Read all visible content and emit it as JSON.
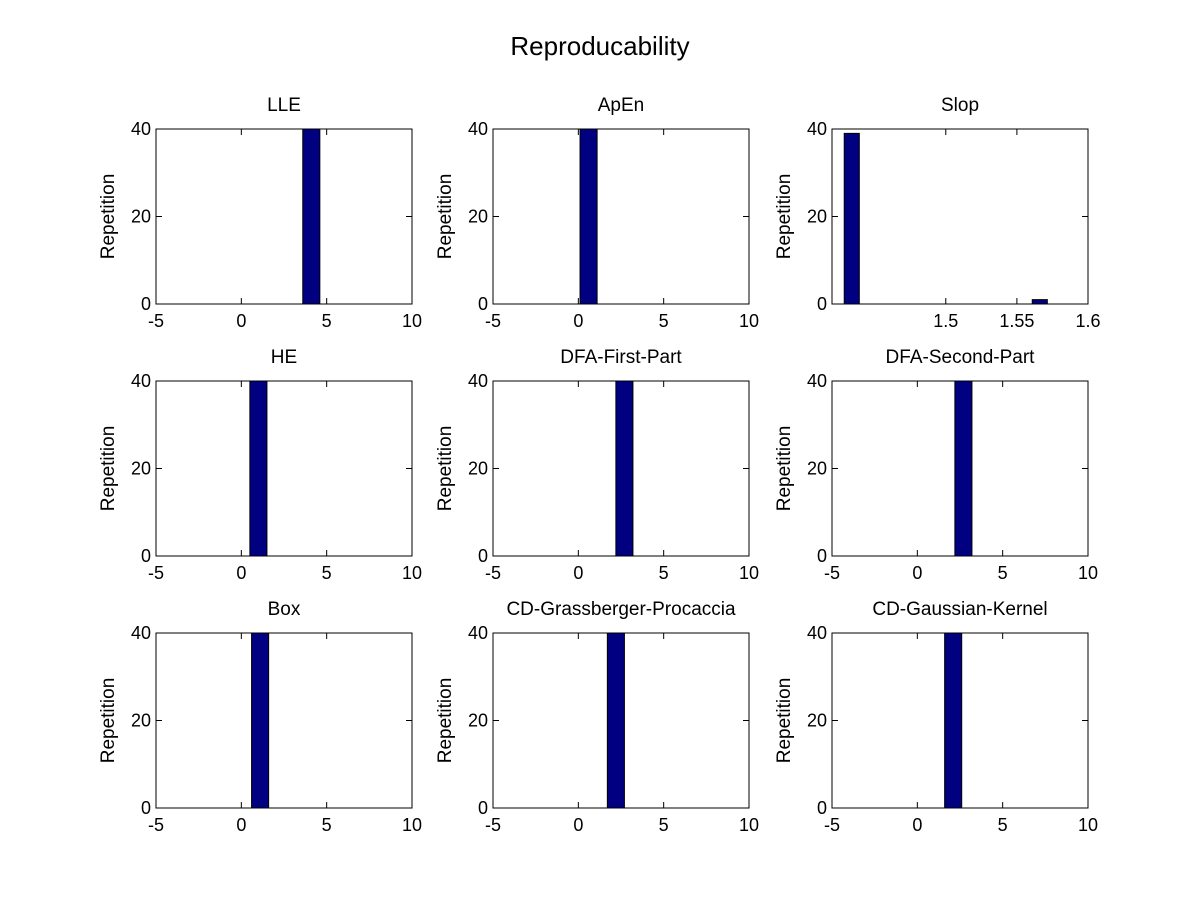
{
  "figure": {
    "title": "Reproducability",
    "bar_color": "#000080",
    "background": "#ffffff"
  },
  "chart_data": [
    {
      "type": "bar",
      "title": "LLE",
      "xlabel": "",
      "ylabel": "Repetition",
      "xlim": [
        -5,
        10
      ],
      "ylim": [
        0,
        40
      ],
      "xticks": [
        "-5",
        "0",
        "5",
        "10"
      ],
      "yticks": [
        "0",
        "20",
        "40"
      ],
      "x_values": [
        3.6,
        4.6
      ],
      "x": [
        4.1
      ],
      "values": [
        40
      ]
    },
    {
      "type": "bar",
      "title": "ApEn",
      "xlabel": "",
      "ylabel": "Repetition",
      "xlim": [
        -5,
        10
      ],
      "ylim": [
        0,
        40
      ],
      "xticks": [
        "-5",
        "0",
        "5",
        "10"
      ],
      "yticks": [
        "0",
        "20",
        "40"
      ],
      "x_values": [
        0.1,
        1.1
      ],
      "x": [
        0.6
      ],
      "values": [
        40
      ]
    },
    {
      "type": "bar",
      "title": "Slop",
      "xlabel": "",
      "ylabel": "Repetition",
      "xlim": [
        1.42,
        1.6
      ],
      "ylim": [
        0,
        40
      ],
      "xticks": [
        "1.5",
        "1.55",
        "1.6"
      ],
      "yticks": [
        "0",
        "20",
        "40"
      ],
      "x_values": [
        1.5,
        1.55,
        1.6
      ],
      "x": [
        1.4339,
        1.5661
      ],
      "bar_width": 0.0106,
      "values": [
        39,
        1
      ]
    },
    {
      "type": "bar",
      "title": "HE",
      "xlabel": "",
      "ylabel": "Repetition",
      "xlim": [
        -5,
        10
      ],
      "ylim": [
        0,
        40
      ],
      "xticks": [
        "-5",
        "0",
        "5",
        "10"
      ],
      "yticks": [
        "0",
        "20",
        "40"
      ],
      "x_values": [
        0.5,
        1.5
      ],
      "x": [
        1.0
      ],
      "values": [
        40
      ]
    },
    {
      "type": "bar",
      "title": "DFA-First-Part",
      "xlabel": "",
      "ylabel": "Repetition",
      "xlim": [
        -5,
        10
      ],
      "ylim": [
        0,
        40
      ],
      "xticks": [
        "-5",
        "0",
        "5",
        "10"
      ],
      "yticks": [
        "0",
        "20",
        "40"
      ],
      "x_values": [
        2.2,
        3.2
      ],
      "x": [
        2.7
      ],
      "values": [
        40
      ]
    },
    {
      "type": "bar",
      "title": "DFA-Second-Part",
      "xlabel": "",
      "ylabel": "Repetition",
      "xlim": [
        -5,
        10
      ],
      "ylim": [
        0,
        40
      ],
      "xticks": [
        "-5",
        "0",
        "5",
        "10"
      ],
      "yticks": [
        "0",
        "20",
        "40"
      ],
      "x_values": [
        2.2,
        3.2
      ],
      "x": [
        2.7
      ],
      "values": [
        40
      ]
    },
    {
      "type": "bar",
      "title": "Box",
      "xlabel": "",
      "ylabel": "Repetition",
      "xlim": [
        -5,
        10
      ],
      "ylim": [
        0,
        40
      ],
      "xticks": [
        "-5",
        "0",
        "5",
        "10"
      ],
      "yticks": [
        "0",
        "20",
        "40"
      ],
      "x_values": [
        0.6,
        1.6
      ],
      "x": [
        1.1
      ],
      "values": [
        40
      ]
    },
    {
      "type": "bar",
      "title": "CD-Grassberger-Procaccia",
      "xlabel": "",
      "ylabel": "Repetition",
      "xlim": [
        -5,
        10
      ],
      "ylim": [
        0,
        40
      ],
      "xticks": [
        "-5",
        "0",
        "5",
        "10"
      ],
      "yticks": [
        "0",
        "20",
        "40"
      ],
      "x_values": [
        1.7,
        2.7
      ],
      "x": [
        2.2
      ],
      "values": [
        40
      ]
    },
    {
      "type": "bar",
      "title": "CD-Gaussian-Kernel",
      "xlabel": "",
      "ylabel": "Repetition",
      "xlim": [
        -5,
        10
      ],
      "ylim": [
        0,
        40
      ],
      "xticks": [
        "-5",
        "0",
        "5",
        "10"
      ],
      "yticks": [
        "0",
        "20",
        "40"
      ],
      "x_values": [
        1.6,
        2.6
      ],
      "x": [
        2.1
      ],
      "values": [
        40
      ]
    }
  ]
}
